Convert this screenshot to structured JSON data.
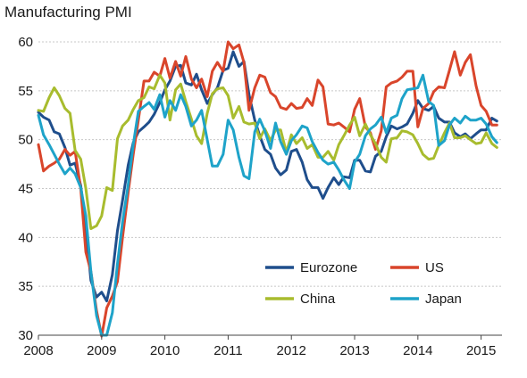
{
  "chart_data": {
    "type": "line",
    "title": "Manufacturing PMI",
    "xlabel": "",
    "ylabel": "",
    "xlim": [
      2008,
      2015.33
    ],
    "ylim": [
      30,
      60
    ],
    "xticks": [
      2008,
      2009,
      2010,
      2011,
      2012,
      2013,
      2014,
      2015
    ],
    "xtick_labels": [
      "2008",
      "2009",
      "2010",
      "2011",
      "2012",
      "2013",
      "2014",
      "2015"
    ],
    "yticks": [
      30,
      35,
      40,
      45,
      50,
      55,
      60
    ],
    "ytick_labels": [
      "30",
      "35",
      "40",
      "45",
      "50",
      "55",
      "60"
    ],
    "grid": "horizontal-dashed",
    "legend_position": "bottom-right",
    "series": [
      {
        "name": "Eurozone",
        "color": "#1f4e8c",
        "x": [
          2008.0,
          2008.08,
          2008.17,
          2008.25,
          2008.33,
          2008.42,
          2008.5,
          2008.58,
          2008.67,
          2008.75,
          2008.83,
          2008.92,
          2009.0,
          2009.08,
          2009.17,
          2009.25,
          2009.33,
          2009.42,
          2009.5,
          2009.58,
          2009.67,
          2009.75,
          2009.83,
          2009.92,
          2010.0,
          2010.08,
          2010.17,
          2010.25,
          2010.33,
          2010.42,
          2010.5,
          2010.58,
          2010.67,
          2010.75,
          2010.83,
          2010.92,
          2011.0,
          2011.08,
          2011.17,
          2011.25,
          2011.33,
          2011.42,
          2011.5,
          2011.58,
          2011.67,
          2011.75,
          2011.83,
          2011.92,
          2012.0,
          2012.08,
          2012.17,
          2012.25,
          2012.33,
          2012.42,
          2012.5,
          2012.58,
          2012.67,
          2012.75,
          2012.83,
          2012.92,
          2013.0,
          2013.08,
          2013.17,
          2013.25,
          2013.33,
          2013.42,
          2013.5,
          2013.58,
          2013.67,
          2013.75,
          2013.83,
          2013.92,
          2014.0,
          2014.08,
          2014.17,
          2014.25,
          2014.33,
          2014.42,
          2014.5,
          2014.58,
          2014.67,
          2014.75,
          2014.83,
          2014.92,
          2015.0,
          2015.08,
          2015.17,
          2015.25
        ],
        "values": [
          52.8,
          52.3,
          52.0,
          50.8,
          50.6,
          49.2,
          47.4,
          47.6,
          45.3,
          41.1,
          35.6,
          33.9,
          34.4,
          33.5,
          36.2,
          40.7,
          43.8,
          47.4,
          49.7,
          50.8,
          51.3,
          51.8,
          52.6,
          53.8,
          55.1,
          56.0,
          57.5,
          57.6,
          55.8,
          55.6,
          56.7,
          55.1,
          53.7,
          54.6,
          55.3,
          57.1,
          57.3,
          59.0,
          57.5,
          58.0,
          54.6,
          52.0,
          50.4,
          49.0,
          48.5,
          47.1,
          46.4,
          46.9,
          48.8,
          49.0,
          47.7,
          45.9,
          45.1,
          45.1,
          44.0,
          45.1,
          46.1,
          45.4,
          46.2,
          46.1,
          47.9,
          47.9,
          46.8,
          46.7,
          48.3,
          48.8,
          50.3,
          51.4,
          51.1,
          51.3,
          51.6,
          52.7,
          54.0,
          53.2,
          53.0,
          53.4,
          52.2,
          51.8,
          51.8,
          50.7,
          50.3,
          50.6,
          50.1,
          50.6,
          51.0,
          51.0,
          52.2,
          51.9
        ]
      },
      {
        "name": "US",
        "color": "#d9452b",
        "x": [
          2008.0,
          2008.08,
          2008.17,
          2008.25,
          2008.33,
          2008.42,
          2008.5,
          2008.58,
          2008.67,
          2008.75,
          2008.83,
          2008.92,
          2009.0,
          2009.08,
          2009.17,
          2009.25,
          2009.33,
          2009.42,
          2009.5,
          2009.58,
          2009.67,
          2009.75,
          2009.83,
          2009.92,
          2010.0,
          2010.08,
          2010.17,
          2010.25,
          2010.33,
          2010.42,
          2010.5,
          2010.58,
          2010.67,
          2010.75,
          2010.83,
          2010.92,
          2011.0,
          2011.08,
          2011.17,
          2011.25,
          2011.33,
          2011.42,
          2011.5,
          2011.58,
          2011.67,
          2011.75,
          2011.83,
          2011.92,
          2012.0,
          2012.08,
          2012.17,
          2012.25,
          2012.33,
          2012.42,
          2012.5,
          2012.58,
          2012.67,
          2012.75,
          2012.83,
          2012.92,
          2013.0,
          2013.08,
          2013.17,
          2013.25,
          2013.33,
          2013.42,
          2013.5,
          2013.58,
          2013.67,
          2013.75,
          2013.83,
          2013.92,
          2014.0,
          2014.08,
          2014.17,
          2014.25,
          2014.33,
          2014.42,
          2014.5,
          2014.58,
          2014.67,
          2014.75,
          2014.83,
          2014.92,
          2015.0,
          2015.08,
          2015.17,
          2015.25
        ],
        "values": [
          49.5,
          46.8,
          47.3,
          47.6,
          48.0,
          49.0,
          48.4,
          48.8,
          45.0,
          38.5,
          36.5,
          32.5,
          29.9,
          32.8,
          34.0,
          35.5,
          40.0,
          44.6,
          48.5,
          52.0,
          56.0,
          56.0,
          56.9,
          56.5,
          58.3,
          56.3,
          58.0,
          56.5,
          58.5,
          56.2,
          55.3,
          56.2,
          54.4,
          57.0,
          57.9,
          57.0,
          60.0,
          59.3,
          59.7,
          57.9,
          53.0,
          55.3,
          56.6,
          56.4,
          54.8,
          54.4,
          53.3,
          53.1,
          53.7,
          53.2,
          53.3,
          54.2,
          53.5,
          56.1,
          55.4,
          51.6,
          51.5,
          51.7,
          51.3,
          50.8,
          53.1,
          54.2,
          51.3,
          50.7,
          49.0,
          50.9,
          55.4,
          55.8,
          56.0,
          56.4,
          57.0,
          57.0,
          51.3,
          53.2,
          53.7,
          54.9,
          55.4,
          55.3,
          57.1,
          59.0,
          56.6,
          57.9,
          58.7,
          55.5,
          53.5,
          52.9,
          51.5,
          51.5
        ]
      },
      {
        "name": "China",
        "color": "#a8bc2e",
        "x": [
          2008.0,
          2008.08,
          2008.17,
          2008.25,
          2008.33,
          2008.42,
          2008.5,
          2008.58,
          2008.67,
          2008.75,
          2008.83,
          2008.92,
          2009.0,
          2009.08,
          2009.17,
          2009.25,
          2009.33,
          2009.42,
          2009.5,
          2009.58,
          2009.67,
          2009.75,
          2009.83,
          2009.92,
          2010.0,
          2010.08,
          2010.17,
          2010.25,
          2010.33,
          2010.42,
          2010.5,
          2010.58,
          2010.67,
          2010.75,
          2010.83,
          2010.92,
          2011.0,
          2011.08,
          2011.17,
          2011.25,
          2011.33,
          2011.42,
          2011.5,
          2011.58,
          2011.67,
          2011.75,
          2011.83,
          2011.92,
          2012.0,
          2012.08,
          2012.17,
          2012.25,
          2012.33,
          2012.42,
          2012.5,
          2012.58,
          2012.67,
          2012.75,
          2012.83,
          2012.92,
          2013.0,
          2013.08,
          2013.17,
          2013.25,
          2013.33,
          2013.42,
          2013.5,
          2013.58,
          2013.67,
          2013.75,
          2013.83,
          2013.92,
          2014.0,
          2014.08,
          2014.17,
          2014.25,
          2014.33,
          2014.42,
          2014.5,
          2014.58,
          2014.67,
          2014.75,
          2014.83,
          2014.92,
          2015.0,
          2015.08,
          2015.17,
          2015.25
        ],
        "values": [
          53.0,
          52.9,
          54.3,
          55.3,
          54.5,
          53.2,
          52.7,
          48.9,
          48.0,
          45.0,
          40.9,
          41.2,
          42.2,
          45.1,
          44.8,
          50.1,
          51.4,
          52.0,
          53.1,
          54.0,
          54.3,
          55.4,
          55.2,
          56.6,
          55.8,
          52.0,
          55.1,
          55.7,
          53.9,
          52.1,
          50.4,
          49.6,
          52.7,
          54.7,
          55.2,
          55.3,
          54.5,
          52.2,
          53.4,
          51.8,
          51.6,
          51.7,
          50.1,
          51.1,
          49.9,
          51.0,
          51.0,
          48.7,
          50.5,
          49.6,
          50.2,
          49.1,
          49.5,
          48.2,
          48.2,
          48.8,
          47.9,
          49.5,
          50.4,
          51.5,
          52.3,
          50.4,
          51.6,
          50.5,
          49.6,
          48.2,
          47.7,
          50.1,
          50.2,
          50.9,
          50.8,
          50.5,
          49.6,
          48.5,
          48.0,
          48.1,
          49.4,
          50.7,
          51.7,
          50.2,
          50.2,
          50.4,
          50.0,
          49.6,
          49.7,
          50.7,
          49.6,
          49.2
        ]
      },
      {
        "name": "Japan",
        "color": "#1ea3c9",
        "x": [
          2008.0,
          2008.08,
          2008.17,
          2008.25,
          2008.33,
          2008.42,
          2008.5,
          2008.58,
          2008.67,
          2008.75,
          2008.83,
          2008.92,
          2009.0,
          2009.08,
          2009.17,
          2009.25,
          2009.33,
          2009.42,
          2009.5,
          2009.58,
          2009.67,
          2009.75,
          2009.83,
          2009.92,
          2010.0,
          2010.08,
          2010.17,
          2010.25,
          2010.33,
          2010.42,
          2010.5,
          2010.58,
          2010.67,
          2010.75,
          2010.83,
          2010.92,
          2011.0,
          2011.08,
          2011.17,
          2011.25,
          2011.33,
          2011.42,
          2011.5,
          2011.58,
          2011.67,
          2011.75,
          2011.83,
          2011.92,
          2012.0,
          2012.08,
          2012.17,
          2012.25,
          2012.33,
          2012.42,
          2012.5,
          2012.58,
          2012.67,
          2012.75,
          2012.83,
          2012.92,
          2013.0,
          2013.08,
          2013.17,
          2013.25,
          2013.33,
          2013.42,
          2013.5,
          2013.58,
          2013.67,
          2013.75,
          2013.83,
          2013.92,
          2014.0,
          2014.08,
          2014.17,
          2014.25,
          2014.33,
          2014.42,
          2014.5,
          2014.58,
          2014.67,
          2014.75,
          2014.83,
          2014.92,
          2015.0,
          2015.08,
          2015.17,
          2015.25
        ],
        "values": [
          52.5,
          50.5,
          49.5,
          48.5,
          47.5,
          46.5,
          47.1,
          46.5,
          45.1,
          42.2,
          36.5,
          32.0,
          30.0,
          30.0,
          32.3,
          37.3,
          41.6,
          45.4,
          49.5,
          52.9,
          53.4,
          53.8,
          53.1,
          54.6,
          52.3,
          54.0,
          53.0,
          54.6,
          53.4,
          51.4,
          52.0,
          53.0,
          50.0,
          47.3,
          47.3,
          48.5,
          52.0,
          51.0,
          48.2,
          46.3,
          46.0,
          50.8,
          52.1,
          50.9,
          49.1,
          51.7,
          49.8,
          48.5,
          49.9,
          50.5,
          51.4,
          51.2,
          49.8,
          48.7,
          47.9,
          47.5,
          47.7,
          46.9,
          45.9,
          45.0,
          47.7,
          48.5,
          50.4,
          51.1,
          51.5,
          52.3,
          50.7,
          52.2,
          52.5,
          54.2,
          55.1,
          55.2,
          55.3,
          56.6,
          53.9,
          53.5,
          49.4,
          49.9,
          51.5,
          52.2,
          51.7,
          52.4,
          52.0,
          52.0,
          52.2,
          51.6,
          50.3,
          49.7
        ]
      }
    ]
  }
}
